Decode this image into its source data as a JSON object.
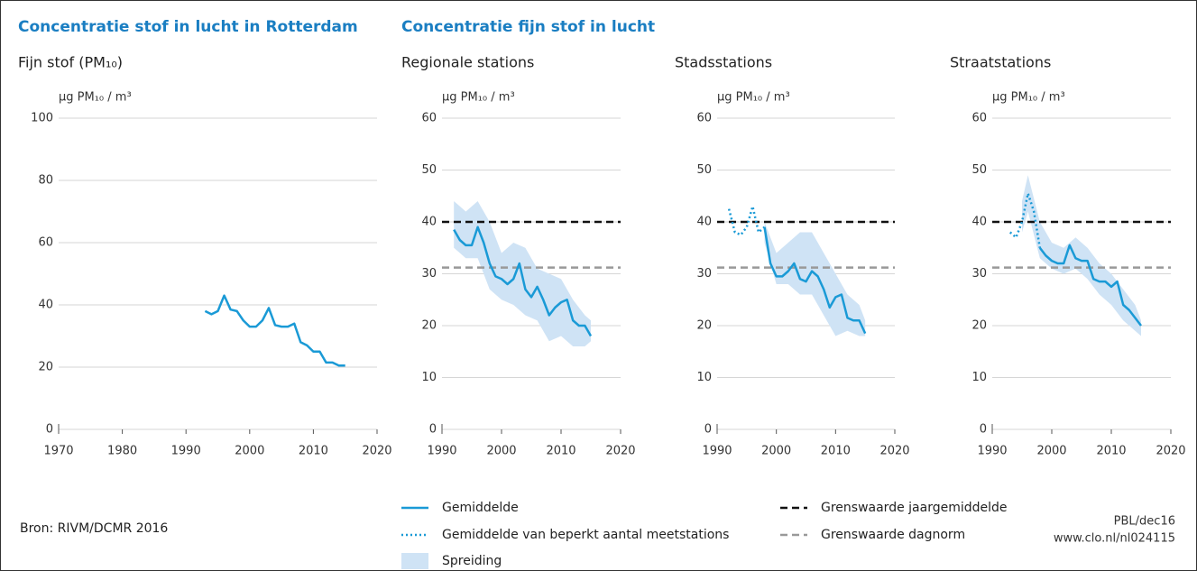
{
  "headers": [
    "Concentratie stof in lucht in Rotterdam",
    "Concentratie fijn stof in lucht"
  ],
  "source": "Bron: RIVM/DCMR 2016",
  "credit": [
    "PBL/dec16",
    "www.clo.nl/nl024115"
  ],
  "legend": [
    {
      "name": "Gemiddelde",
      "kind": "line",
      "style": "solid",
      "color": "#1a9ad6"
    },
    {
      "name": "Gemiddelde van beperkt aantal meetstations",
      "kind": "line",
      "style": "dotted",
      "color": "#1a9ad6"
    },
    {
      "name": "Spreiding",
      "kind": "band",
      "color": "#cfe3f5"
    },
    {
      "name": "Grenswaarde jaargemiddelde",
      "kind": "line",
      "style": "dashed",
      "color": "#111111"
    },
    {
      "name": "Grenswaarde dagnorm",
      "kind": "line",
      "style": "dashed",
      "color": "#999999"
    }
  ],
  "chart_data": [
    {
      "type": "line",
      "title": "Fijn stof (PM₁₀)",
      "ylabel": "µg PM₁₀ / m³",
      "xlim": [
        1970,
        2020
      ],
      "xticks": [
        1970,
        1980,
        1990,
        2000,
        2010,
        2020
      ],
      "ylim": [
        0,
        100
      ],
      "yticks": [
        0,
        20,
        40,
        60,
        80,
        100
      ],
      "grid": true,
      "series": [
        {
          "name": "Gemiddelde",
          "type": "line",
          "style": "solid",
          "color": "#1a9ad6",
          "x": [
            1993,
            1994,
            1995,
            1996,
            1997,
            1998,
            1999,
            2000,
            2001,
            2002,
            2003,
            2004,
            2005,
            2006,
            2007,
            2008,
            2009,
            2010,
            2011,
            2012,
            2013,
            2014,
            2015
          ],
          "values": [
            38,
            37,
            38,
            43,
            38.5,
            38,
            35,
            33,
            33,
            35,
            39,
            33.5,
            33,
            33,
            34,
            28,
            27,
            25,
            25,
            21.5,
            21.5,
            20.5,
            20.5
          ]
        }
      ]
    },
    {
      "type": "line",
      "title": "Regionale stations",
      "ylabel": "µg PM₁₀ / m³",
      "xlim": [
        1990,
        2020
      ],
      "xticks": [
        1990,
        2000,
        2010,
        2020
      ],
      "ylim": [
        0,
        60
      ],
      "yticks": [
        0,
        10,
        20,
        30,
        40,
        50,
        60
      ],
      "grid": true,
      "reference_lines": [
        {
          "name": "Grenswaarde jaargemiddelde",
          "value": 40,
          "color": "#111111"
        },
        {
          "name": "Grenswaarde dagnorm",
          "value": 31.2,
          "color": "#999999"
        }
      ],
      "series": [
        {
          "name": "Spreiding",
          "type": "band",
          "color": "#cfe3f5",
          "x": [
            1992,
            1994,
            1996,
            1998,
            2000,
            2002,
            2004,
            2006,
            2008,
            2010,
            2012,
            2014,
            2015
          ],
          "lower": [
            35,
            33,
            33,
            27,
            25,
            24,
            22,
            21,
            17,
            18,
            16,
            16,
            17
          ],
          "upper": [
            44,
            42,
            44,
            40,
            34,
            36,
            35,
            31,
            30,
            29,
            25,
            22,
            21
          ]
        },
        {
          "name": "Gemiddelde",
          "type": "line",
          "style": "solid",
          "color": "#1a9ad6",
          "x": [
            1992,
            1993,
            1994,
            1995,
            1996,
            1997,
            1998,
            1999,
            2000,
            2001,
            2002,
            2003,
            2004,
            2005,
            2006,
            2007,
            2008,
            2009,
            2010,
            2011,
            2012,
            2013,
            2014,
            2015
          ],
          "values": [
            38.5,
            36.5,
            35.5,
            35.5,
            39,
            36,
            32,
            29.5,
            29,
            28,
            29,
            32,
            27,
            25.5,
            27.5,
            25,
            22,
            23.5,
            24.5,
            25,
            21,
            20,
            20,
            18
          ]
        }
      ]
    },
    {
      "type": "line",
      "title": "Stadsstations",
      "ylabel": "µg PM₁₀ / m³",
      "xlim": [
        1990,
        2020
      ],
      "xticks": [
        1990,
        2000,
        2010,
        2020
      ],
      "ylim": [
        0,
        60
      ],
      "yticks": [
        0,
        10,
        20,
        30,
        40,
        50,
        60
      ],
      "grid": true,
      "reference_lines": [
        {
          "name": "Grenswaarde jaargemiddelde",
          "value": 40,
          "color": "#111111"
        },
        {
          "name": "Grenswaarde dagnorm",
          "value": 31.2,
          "color": "#999999"
        }
      ],
      "series": [
        {
          "name": "Spreiding",
          "type": "band",
          "color": "#cfe3f5",
          "x": [
            1998,
            2000,
            2002,
            2004,
            2006,
            2008,
            2010,
            2012,
            2014,
            2015
          ],
          "lower": [
            36,
            28,
            28,
            26,
            26,
            22,
            18,
            19,
            18,
            18
          ],
          "upper": [
            40,
            34,
            36,
            38,
            38,
            34,
            30,
            26,
            24,
            21
          ]
        },
        {
          "name": "Gemiddelde van beperkt aantal meetstations",
          "type": "line",
          "style": "dotted",
          "color": "#1a9ad6",
          "x": [
            1992,
            1993,
            1994,
            1995,
            1996,
            1997,
            1998
          ],
          "values": [
            42.5,
            38,
            37.5,
            39,
            43,
            38,
            39
          ]
        },
        {
          "name": "Gemiddelde",
          "type": "line",
          "style": "solid",
          "color": "#1a9ad6",
          "x": [
            1998,
            1999,
            2000,
            2001,
            2002,
            2003,
            2004,
            2005,
            2006,
            2007,
            2008,
            2009,
            2010,
            2011,
            2012,
            2013,
            2014,
            2015
          ],
          "values": [
            39,
            32,
            29.5,
            29.5,
            30.5,
            32,
            29,
            28.5,
            30.5,
            29.5,
            27,
            23.5,
            25.5,
            26,
            21.5,
            21,
            21,
            18.5
          ]
        }
      ]
    },
    {
      "type": "line",
      "title": "Straatstations",
      "ylabel": "µg PM₁₀ / m³",
      "xlim": [
        1990,
        2020
      ],
      "xticks": [
        1990,
        2000,
        2010,
        2020
      ],
      "ylim": [
        0,
        60
      ],
      "yticks": [
        0,
        10,
        20,
        30,
        40,
        50,
        60
      ],
      "grid": true,
      "reference_lines": [
        {
          "name": "Grenswaarde jaargemiddelde",
          "value": 40,
          "color": "#111111"
        },
        {
          "name": "Grenswaarde dagnorm",
          "value": 31.2,
          "color": "#999999"
        }
      ],
      "series": [
        {
          "name": "Spreiding",
          "type": "band",
          "color": "#cfe3f5",
          "x": [
            1995,
            1996,
            1998,
            2000,
            2002,
            2004,
            2006,
            2008,
            2010,
            2012,
            2014,
            2015
          ],
          "lower": [
            38,
            42,
            33,
            31,
            30,
            31,
            29,
            26,
            24,
            21,
            19,
            18
          ],
          "upper": [
            44,
            49,
            40,
            36,
            35,
            37,
            35,
            32,
            30,
            27,
            24,
            21
          ]
        },
        {
          "name": "Gemiddelde van beperkt aantal meetstations",
          "type": "line",
          "style": "dotted",
          "color": "#1a9ad6",
          "x": [
            1993,
            1994,
            1995,
            1996,
            1997,
            1998
          ],
          "values": [
            38,
            37,
            40,
            45.5,
            42,
            35
          ]
        },
        {
          "name": "Gemiddelde",
          "type": "line",
          "style": "solid",
          "color": "#1a9ad6",
          "x": [
            1998,
            1999,
            2000,
            2001,
            2002,
            2003,
            2004,
            2005,
            2006,
            2007,
            2008,
            2009,
            2010,
            2011,
            2012,
            2013,
            2014,
            2015
          ],
          "values": [
            35,
            33.5,
            32.5,
            32,
            32,
            35.5,
            33,
            32.5,
            32.5,
            29,
            28.5,
            28.5,
            27.5,
            28.5,
            24,
            23,
            21.5,
            20
          ]
        }
      ]
    }
  ]
}
